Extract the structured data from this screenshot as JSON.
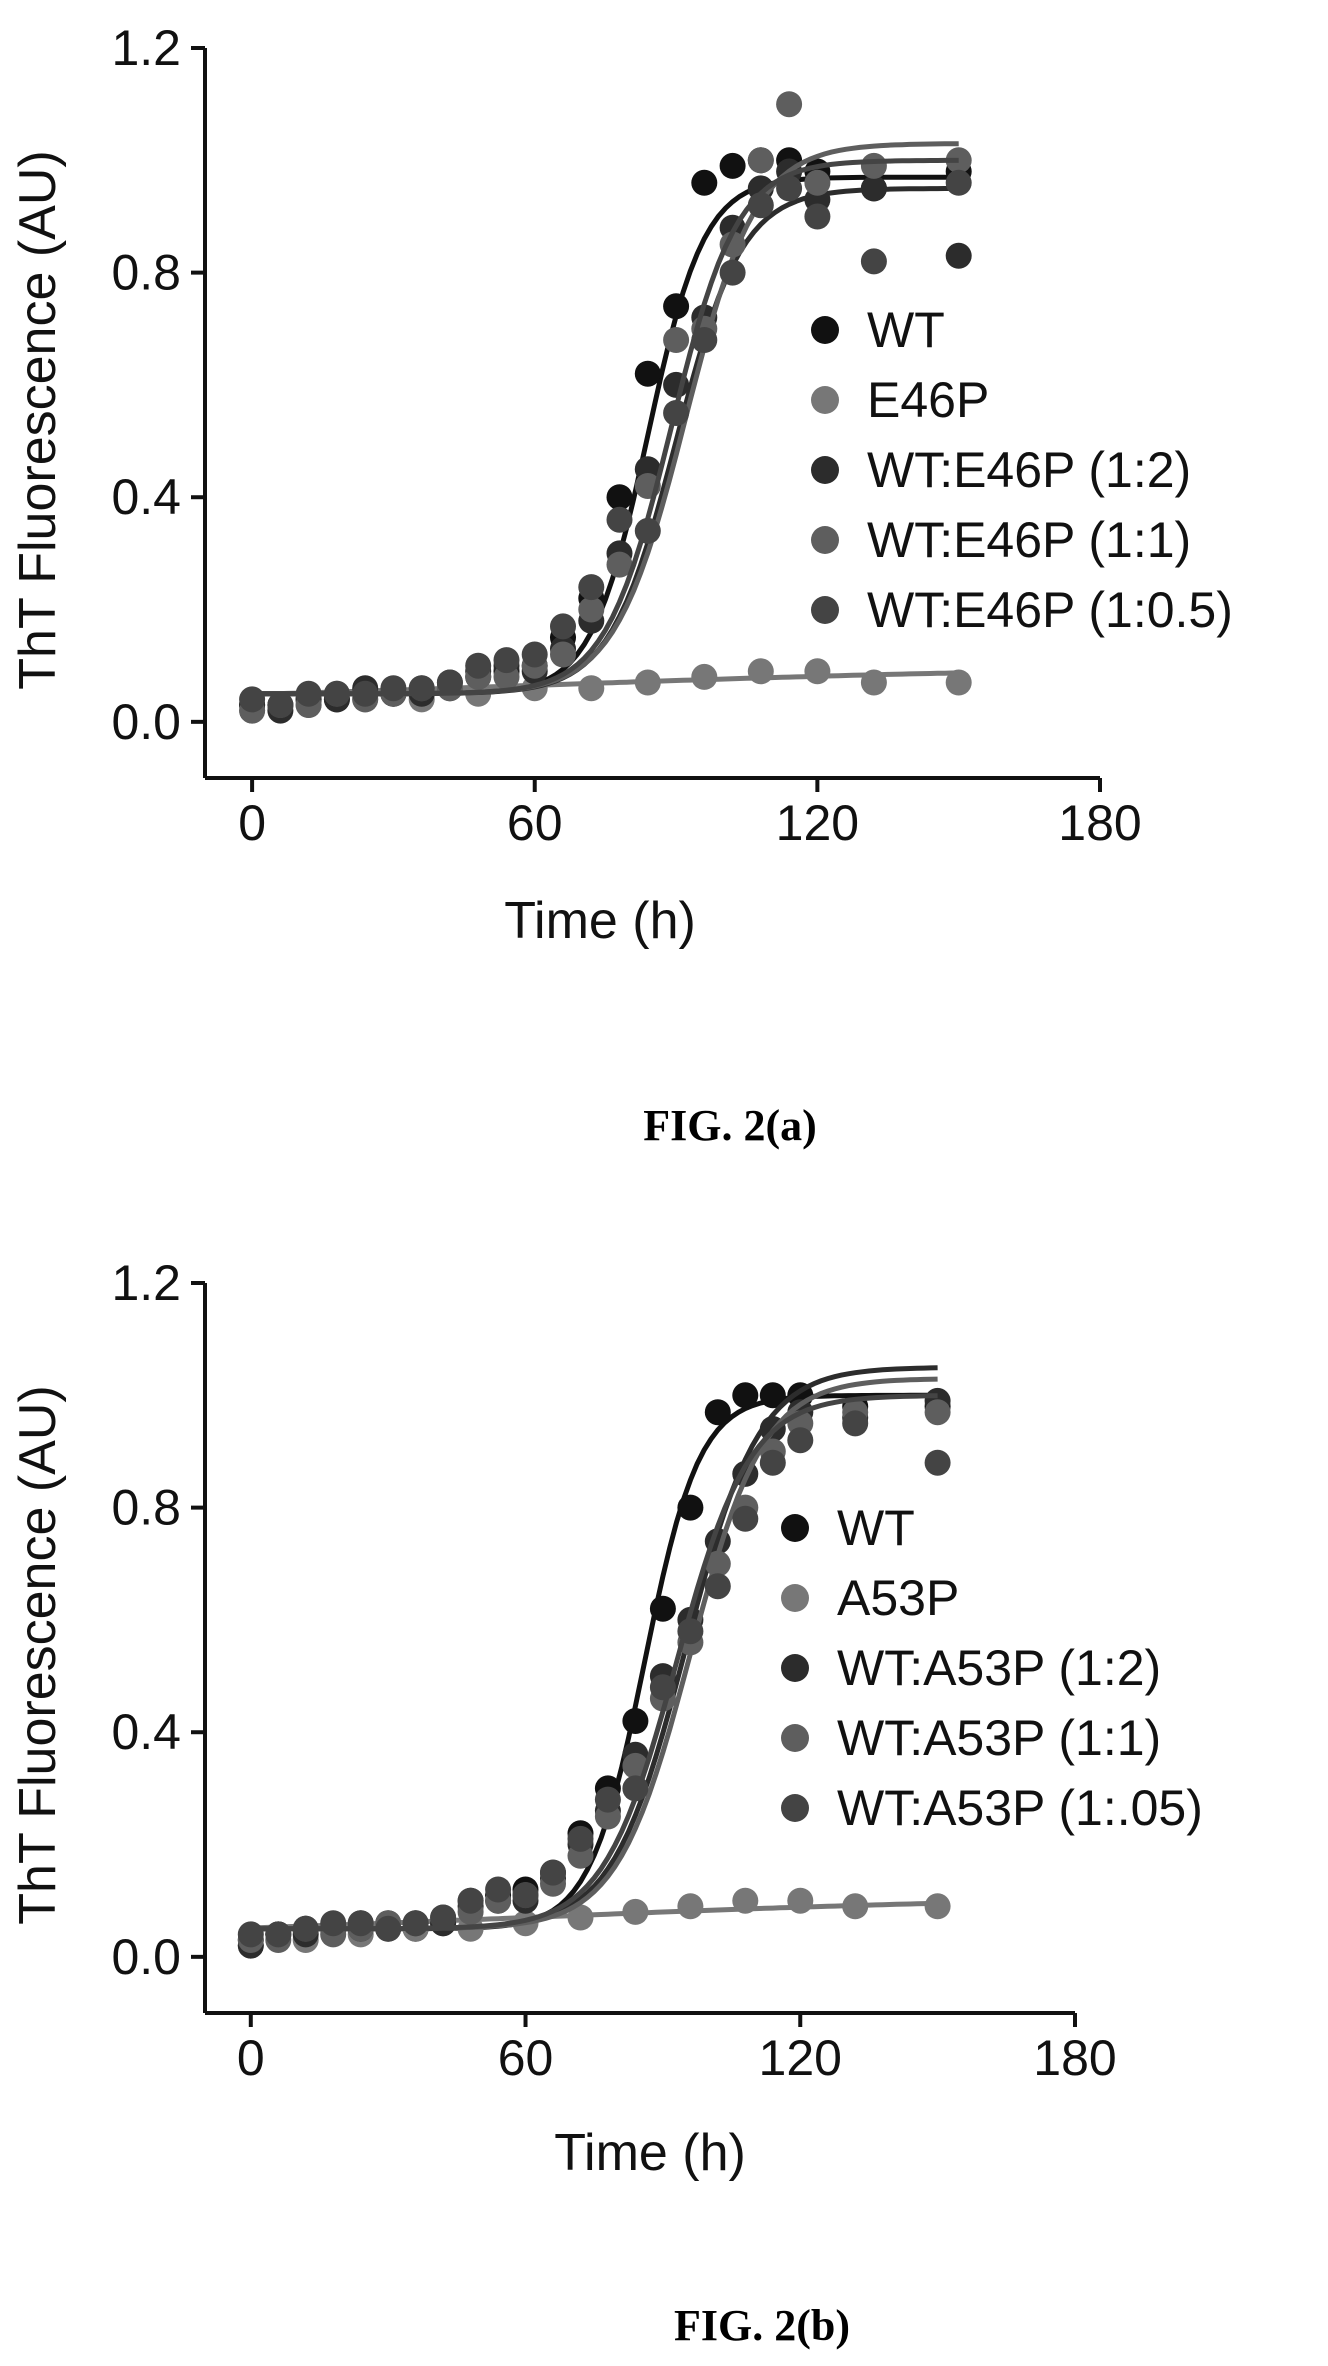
{
  "figures": [
    {
      "caption": "FIG. 2(a)",
      "legend": [
        "WT",
        "E46P",
        "WT:E46P (1:2)",
        "WT:E46P (1:1)",
        "WT:E46P (1:0.5)"
      ]
    },
    {
      "caption": "FIG. 2(b)",
      "legend": [
        "WT",
        "A53P",
        "WT:A53P (1:2)",
        "WT:A53P (1:1)",
        "WT:A53P (1:.05)"
      ]
    }
  ],
  "series_colors": [
    "#111111",
    "#777777",
    "#2c2c2c",
    "#5e5e5e",
    "#444444"
  ],
  "chart_data": [
    {
      "type": "scatter",
      "title": "",
      "xlabel": "Time (h)",
      "ylabel": "ThT Fluorescence (AU)",
      "xlim": [
        -10,
        180
      ],
      "ylim": [
        -0.1,
        1.2
      ],
      "xticks": [
        0,
        60,
        120,
        180
      ],
      "yticks": [
        0.0,
        0.4,
        0.8,
        1.2
      ],
      "ytick_labels": [
        "0.0",
        "0.4",
        "0.8",
        "1.2"
      ],
      "legend_position": "right",
      "series": [
        {
          "name": "WT",
          "x": [
            0,
            6,
            12,
            18,
            24,
            30,
            36,
            42,
            48,
            54,
            60,
            66,
            72,
            78,
            84,
            90,
            96,
            102,
            108,
            114,
            120,
            132,
            150
          ],
          "y": [
            0.03,
            0.03,
            0.04,
            0.04,
            0.05,
            0.05,
            0.05,
            0.06,
            0.08,
            0.09,
            0.1,
            0.15,
            0.22,
            0.4,
            0.62,
            0.74,
            0.96,
            0.99,
            1.0,
            1.0,
            0.98,
            0.95,
            0.98
          ],
          "fit": {
            "bottom": 0.05,
            "top": 0.97,
            "t50": 84,
            "k": 6
          }
        },
        {
          "name": "E46P",
          "x": [
            0,
            12,
            24,
            36,
            48,
            60,
            72,
            84,
            96,
            108,
            120,
            132,
            150
          ],
          "y": [
            0.02,
            0.03,
            0.04,
            0.04,
            0.05,
            0.06,
            0.06,
            0.07,
            0.08,
            0.09,
            0.09,
            0.07,
            0.07
          ],
          "fit": {
            "bottom": 0.03,
            "top": 0.1,
            "t50": 60,
            "k": 60
          }
        },
        {
          "name": "WT:E46P (1:2)",
          "x": [
            0,
            6,
            12,
            18,
            24,
            30,
            36,
            42,
            48,
            54,
            60,
            66,
            72,
            78,
            84,
            90,
            96,
            102,
            108,
            114,
            120,
            132,
            150
          ],
          "y": [
            0.03,
            0.02,
            0.04,
            0.04,
            0.06,
            0.05,
            0.05,
            0.07,
            0.09,
            0.1,
            0.09,
            0.13,
            0.18,
            0.3,
            0.45,
            0.6,
            0.72,
            0.88,
            0.95,
            0.98,
            0.93,
            0.95,
            0.83
          ],
          "fit": {
            "bottom": 0.05,
            "top": 0.95,
            "t50": 90,
            "k": 7
          }
        },
        {
          "name": "WT:E46P (1:1)",
          "x": [
            0,
            6,
            12,
            18,
            24,
            30,
            36,
            42,
            48,
            54,
            60,
            66,
            72,
            78,
            84,
            90,
            96,
            102,
            108,
            114,
            120,
            132,
            150
          ],
          "y": [
            0.02,
            0.03,
            0.03,
            0.05,
            0.04,
            0.05,
            0.06,
            0.06,
            0.08,
            0.08,
            0.1,
            0.12,
            0.2,
            0.28,
            0.42,
            0.68,
            0.7,
            0.85,
            1.0,
            1.1,
            0.96,
            0.99,
            1.0
          ],
          "fit": {
            "bottom": 0.05,
            "top": 1.03,
            "t50": 92,
            "k": 7.5
          }
        },
        {
          "name": "WT:E46P (1:0.5)",
          "x": [
            0,
            6,
            12,
            18,
            24,
            30,
            36,
            42,
            48,
            54,
            60,
            66,
            72,
            78,
            84,
            90,
            96,
            102,
            108,
            114,
            120,
            132,
            150
          ],
          "y": [
            0.04,
            0.03,
            0.05,
            0.05,
            0.05,
            0.06,
            0.06,
            0.07,
            0.1,
            0.11,
            0.12,
            0.17,
            0.24,
            0.36,
            0.34,
            0.55,
            0.68,
            0.8,
            0.92,
            0.95,
            0.9,
            0.82,
            0.96
          ],
          "fit": {
            "bottom": 0.05,
            "top": 1.0,
            "t50": 89,
            "k": 7
          }
        }
      ]
    },
    {
      "type": "scatter",
      "title": "",
      "xlabel": "Time (h)",
      "ylabel": "ThT Fluorescence (AU)",
      "xlim": [
        -10,
        180
      ],
      "ylim": [
        -0.1,
        1.2
      ],
      "xticks": [
        0,
        60,
        120,
        180
      ],
      "yticks": [
        0.0,
        0.4,
        0.8,
        1.2
      ],
      "ytick_labels": [
        "0.0",
        "0.4",
        "0.8",
        "1.2"
      ],
      "legend_position": "right",
      "series": [
        {
          "name": "WT",
          "x": [
            0,
            6,
            12,
            18,
            24,
            30,
            36,
            42,
            48,
            54,
            60,
            66,
            72,
            78,
            84,
            90,
            96,
            102,
            108,
            114,
            120,
            132,
            150
          ],
          "y": [
            0.03,
            0.04,
            0.05,
            0.05,
            0.06,
            0.06,
            0.05,
            0.06,
            0.1,
            0.11,
            0.12,
            0.15,
            0.22,
            0.3,
            0.42,
            0.62,
            0.8,
            0.97,
            1.0,
            1.0,
            1.0,
            0.98,
            0.98
          ],
          "fit": {
            "bottom": 0.05,
            "top": 1.0,
            "t50": 86,
            "k": 6
          }
        },
        {
          "name": "A53P",
          "x": [
            0,
            12,
            24,
            36,
            48,
            60,
            72,
            84,
            96,
            108,
            120,
            132,
            150
          ],
          "y": [
            0.02,
            0.03,
            0.04,
            0.05,
            0.05,
            0.06,
            0.07,
            0.08,
            0.09,
            0.1,
            0.1,
            0.09,
            0.09
          ],
          "fit": {
            "bottom": 0.03,
            "top": 0.11,
            "t50": 60,
            "k": 60
          }
        },
        {
          "name": "WT:A53P (1:2)",
          "x": [
            0,
            6,
            12,
            18,
            24,
            30,
            36,
            42,
            48,
            54,
            60,
            66,
            72,
            78,
            84,
            90,
            96,
            102,
            108,
            114,
            120,
            132,
            150
          ],
          "y": [
            0.02,
            0.04,
            0.04,
            0.05,
            0.05,
            0.05,
            0.06,
            0.06,
            0.09,
            0.1,
            0.1,
            0.14,
            0.2,
            0.26,
            0.36,
            0.5,
            0.6,
            0.74,
            0.86,
            0.94,
            0.97,
            0.96,
            0.99
          ],
          "fit": {
            "bottom": 0.05,
            "top": 1.05,
            "t50": 95,
            "k": 8
          }
        },
        {
          "name": "WT:A53P (1:1)",
          "x": [
            0,
            6,
            12,
            18,
            24,
            30,
            36,
            42,
            48,
            54,
            60,
            66,
            72,
            78,
            84,
            90,
            96,
            102,
            108,
            114,
            120,
            132,
            150
          ],
          "y": [
            0.03,
            0.03,
            0.05,
            0.04,
            0.05,
            0.06,
            0.06,
            0.07,
            0.08,
            0.1,
            0.11,
            0.13,
            0.18,
            0.25,
            0.34,
            0.46,
            0.56,
            0.7,
            0.8,
            0.9,
            0.95,
            0.97,
            0.97
          ],
          "fit": {
            "bottom": 0.05,
            "top": 1.03,
            "t50": 96,
            "k": 8
          }
        },
        {
          "name": "WT:A53P (1:.05)",
          "x": [
            0,
            6,
            12,
            18,
            24,
            30,
            36,
            42,
            48,
            54,
            60,
            66,
            72,
            78,
            84,
            90,
            96,
            102,
            108,
            114,
            120,
            132,
            150
          ],
          "y": [
            0.04,
            0.04,
            0.05,
            0.06,
            0.06,
            0.05,
            0.06,
            0.07,
            0.1,
            0.12,
            0.11,
            0.15,
            0.21,
            0.28,
            0.3,
            0.48,
            0.58,
            0.66,
            0.78,
            0.88,
            0.92,
            0.95,
            0.88
          ],
          "fit": {
            "bottom": 0.05,
            "top": 1.0,
            "t50": 93,
            "k": 8
          }
        }
      ]
    }
  ]
}
